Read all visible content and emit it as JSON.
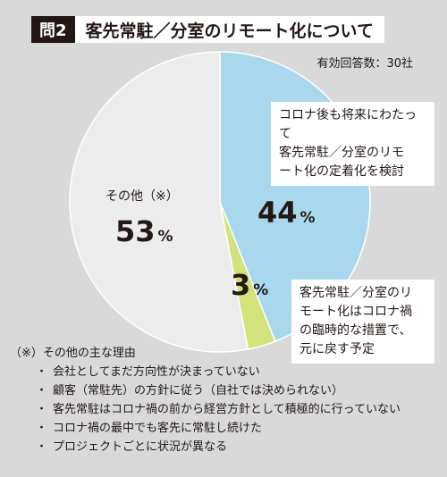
{
  "header": {
    "question_tag": "問2",
    "title": "客先常駐／分室のリモート化について"
  },
  "respondents": "有効回答数：30社",
  "chart_data": {
    "type": "pie",
    "title": "客先常駐／分室のリモート化について",
    "unit": "%",
    "slices": [
      {
        "label": "コロナ後も将来にわたって客先常駐／分室のリモート化の定着化を検討",
        "value": 44,
        "color": "#a9d8ee"
      },
      {
        "label": "客先常駐／分室のリモート化はコロナ禍の臨時的な措置で、元に戻す予定",
        "value": 3,
        "color": "#d4e27b"
      },
      {
        "label": "その他（※）",
        "value": 53,
        "color": "#ececec"
      }
    ]
  },
  "labels": {
    "future": {
      "text": "コロナ後も将来にわたって\n客先常駐／分室のリモ\nート化の定着化を検討",
      "value": "44",
      "unit": "%"
    },
    "temporary": {
      "text": "客先常駐／分室のリ\nモート化はコロナ禍\nの臨時的な措置で、\n元に戻す予定",
      "value": "3",
      "unit": "%"
    },
    "other": {
      "text": "その他（※）",
      "value": "53",
      "unit": "%"
    }
  },
  "notes": {
    "heading_mark": "（※）",
    "heading": "その他の主な理由",
    "bullet": "・",
    "items": [
      "会社としてまだ方向性が決まっていない",
      "顧客（常駐先）の方針に従う（自社では決められない）",
      "客先常駐はコロナ禍の前から経営方針として積極的に行っていない",
      "コロナ禍の最中でも客先に常駐し続けた",
      "プロジェクトごとに状況が異なる"
    ]
  }
}
